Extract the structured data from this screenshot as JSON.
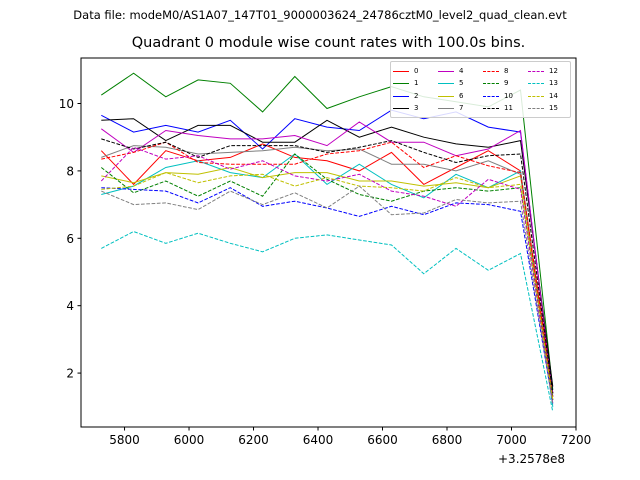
{
  "header": {
    "suptitle": "Data file: modeM0/AS1A07_147T01_9000003624_24786cztM0_level2_quad_clean.evt"
  },
  "chart_data": {
    "type": "line",
    "title": "Quadrant 0 module wise count rates with 100.0s bins.",
    "xlabel": "",
    "ylabel": "",
    "x_offset_label": "+3.2578e8",
    "xlim": [
      5665,
      7200
    ],
    "ylim": [
      0.4,
      11.35
    ],
    "xticks": [
      5800,
      6000,
      6200,
      6400,
      6600,
      6800,
      7000,
      7200
    ],
    "yticks": [
      2,
      4,
      6,
      8,
      10
    ],
    "legend_position": "top-right",
    "x": [
      5728,
      5828,
      5928,
      6028,
      6128,
      6228,
      6328,
      6428,
      6528,
      6628,
      6728,
      6828,
      6928,
      7028,
      7128
    ],
    "series": [
      {
        "name": "0",
        "color": "#ff0000",
        "style": "solid",
        "values": [
          8.6,
          7.6,
          8.6,
          8.3,
          8.4,
          8.8,
          8.4,
          8.3,
          8.0,
          8.55,
          7.6,
          8.1,
          8.6,
          8.0,
          1.4
        ]
      },
      {
        "name": "1",
        "color": "#008000",
        "style": "solid",
        "values": [
          10.25,
          10.9,
          10.2,
          10.7,
          10.6,
          9.75,
          10.8,
          9.85,
          10.2,
          10.5,
          10.2,
          10.05,
          9.9,
          10.4,
          1.5
        ]
      },
      {
        "name": "2",
        "color": "#0000ff",
        "style": "solid",
        "values": [
          9.65,
          9.15,
          9.35,
          9.15,
          9.5,
          8.65,
          9.55,
          9.3,
          9.2,
          9.8,
          9.55,
          9.75,
          9.3,
          9.15,
          1.4
        ]
      },
      {
        "name": "3",
        "color": "#000000",
        "style": "solid",
        "values": [
          9.5,
          9.55,
          8.9,
          9.35,
          9.35,
          8.85,
          8.85,
          9.5,
          9.0,
          9.3,
          9.0,
          8.8,
          8.7,
          8.9,
          1.6
        ]
      },
      {
        "name": "4",
        "color": "#c000c0",
        "style": "solid",
        "values": [
          9.25,
          8.55,
          9.2,
          9.05,
          8.95,
          8.95,
          9.05,
          8.75,
          9.45,
          8.85,
          8.85,
          8.45,
          8.65,
          9.2,
          1.3
        ]
      },
      {
        "name": "5",
        "color": "#00c0c0",
        "style": "solid",
        "values": [
          7.3,
          7.55,
          8.1,
          8.3,
          7.95,
          7.8,
          8.5,
          7.6,
          8.2,
          7.6,
          7.2,
          7.9,
          7.5,
          8.0,
          1.0
        ]
      },
      {
        "name": "6",
        "color": "#c0c000",
        "style": "solid",
        "values": [
          7.85,
          7.65,
          7.95,
          7.9,
          8.1,
          7.8,
          7.95,
          7.95,
          7.7,
          7.7,
          7.55,
          7.65,
          7.5,
          7.85,
          1.2
        ]
      },
      {
        "name": "7",
        "color": "#808080",
        "style": "solid",
        "values": [
          8.4,
          8.75,
          8.7,
          8.5,
          8.55,
          8.6,
          8.7,
          8.6,
          8.65,
          8.2,
          8.2,
          8.0,
          8.3,
          7.9,
          1.3
        ]
      },
      {
        "name": "8",
        "color": "#ff0000",
        "style": "dashed",
        "values": [
          8.35,
          8.55,
          8.85,
          8.25,
          8.2,
          8.2,
          8.2,
          8.5,
          8.6,
          8.85,
          8.1,
          8.45,
          8.15,
          7.95,
          1.3
        ]
      },
      {
        "name": "9",
        "color": "#008000",
        "style": "dashed",
        "values": [
          8.1,
          7.35,
          7.7,
          7.25,
          7.7,
          7.25,
          8.5,
          7.75,
          7.3,
          7.1,
          7.4,
          7.5,
          7.4,
          7.5,
          1.2
        ]
      },
      {
        "name": "10",
        "color": "#0000ff",
        "style": "dashed",
        "values": [
          7.5,
          7.45,
          7.4,
          7.05,
          7.5,
          6.95,
          7.1,
          6.9,
          6.65,
          6.95,
          6.7,
          7.05,
          7.0,
          6.8,
          1.1
        ]
      },
      {
        "name": "11",
        "color": "#000000",
        "style": "dashed",
        "values": [
          8.95,
          8.65,
          8.85,
          8.4,
          8.75,
          8.75,
          8.75,
          8.55,
          8.7,
          8.9,
          8.55,
          8.25,
          8.45,
          8.5,
          1.4
        ]
      },
      {
        "name": "12",
        "color": "#c000c0",
        "style": "dashed",
        "values": [
          7.7,
          8.7,
          8.35,
          8.45,
          8.05,
          8.3,
          7.85,
          7.7,
          7.9,
          7.4,
          7.25,
          6.95,
          7.75,
          7.45,
          1.1
        ]
      },
      {
        "name": "13",
        "color": "#00c0c0",
        "style": "dashed",
        "values": [
          5.7,
          6.2,
          5.85,
          6.15,
          5.85,
          5.6,
          6.0,
          6.1,
          5.95,
          5.8,
          4.95,
          5.7,
          5.05,
          5.55,
          0.85
        ]
      },
      {
        "name": "14",
        "color": "#c0c000",
        "style": "dashed",
        "values": [
          7.45,
          7.55,
          7.95,
          7.65,
          7.85,
          7.9,
          7.55,
          7.8,
          7.55,
          7.5,
          7.4,
          7.8,
          7.5,
          7.6,
          1.2
        ]
      },
      {
        "name": "15",
        "color": "#808080",
        "style": "dashed",
        "values": [
          7.4,
          7.0,
          7.05,
          6.85,
          7.4,
          7.0,
          7.35,
          6.9,
          7.55,
          6.7,
          6.75,
          7.15,
          7.05,
          7.1,
          1.05
        ]
      }
    ]
  }
}
